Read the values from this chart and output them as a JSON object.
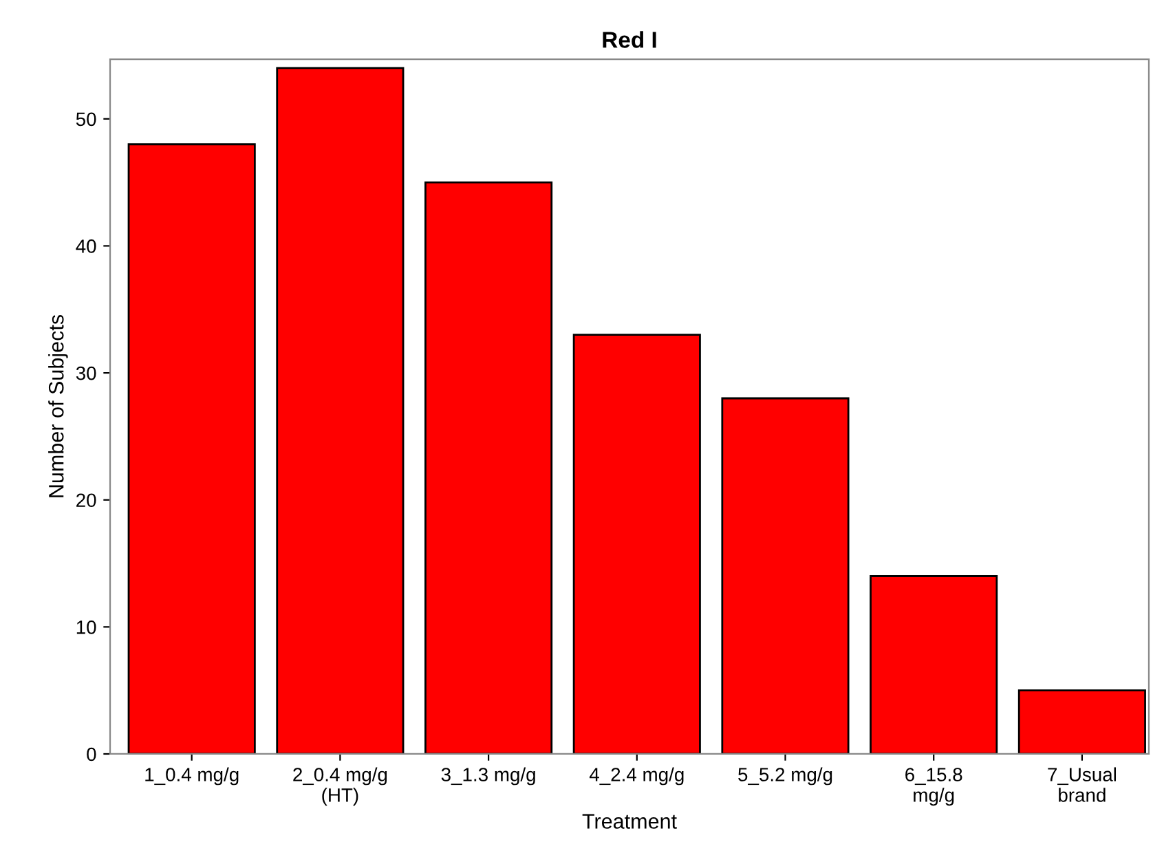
{
  "chart_data": {
    "type": "bar",
    "title": "Red I",
    "xlabel": "Treatment",
    "ylabel": "Number of Subjects",
    "categories": [
      "1_0.4 mg/g",
      "2_0.4 mg/g\n(HT)",
      "3_1.3 mg/g",
      "4_2.4 mg/g",
      "5_5.2 mg/g",
      "6_15.8\nmg/g",
      "7_Usual\nbrand"
    ],
    "values": [
      48,
      54,
      45,
      33,
      28,
      14,
      5
    ],
    "color": "#ff0000",
    "ylim": [
      0,
      54.7
    ],
    "yticks": [
      0,
      10,
      20,
      30,
      40,
      50
    ],
    "grid": false,
    "legend": false
  }
}
